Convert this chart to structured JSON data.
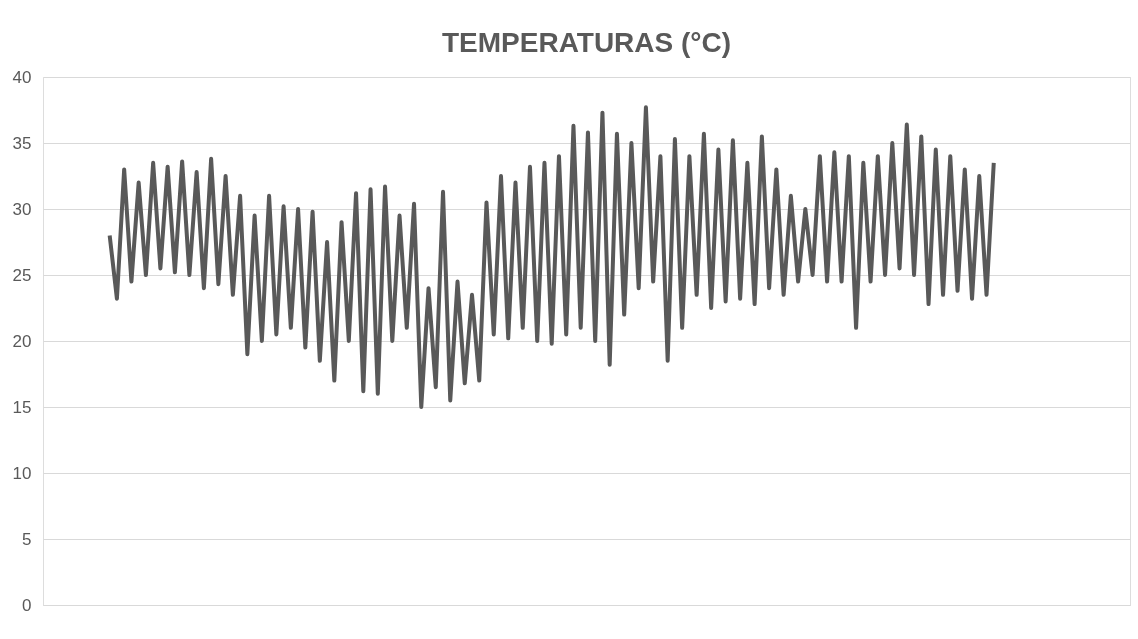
{
  "chart_data": {
    "type": "line",
    "title": "TEMPERATURAS (°C)",
    "categories": [
      null,
      null,
      null,
      null,
      null,
      null,
      null,
      null,
      null,
      null,
      null,
      null,
      null,
      null,
      null,
      null,
      null,
      null,
      null,
      null,
      null,
      null,
      null,
      null,
      null,
      null,
      null,
      null,
      null,
      null,
      null,
      null,
      null,
      null,
      null,
      null,
      null,
      null,
      null,
      null,
      null,
      null,
      null,
      null,
      null,
      null,
      null,
      null,
      null,
      null,
      null,
      null,
      null,
      null,
      null,
      null,
      null,
      null,
      null,
      null,
      null,
      null,
      null,
      null,
      null,
      null,
      null,
      null,
      null,
      null,
      null,
      null,
      null,
      null,
      null,
      null,
      null,
      null,
      null,
      null,
      null,
      null,
      null,
      null,
      null,
      null,
      null,
      null,
      null,
      null,
      null,
      null,
      null,
      null,
      null,
      null,
      null,
      null,
      null,
      null,
      null,
      null,
      null,
      null,
      null,
      null,
      null,
      null,
      null,
      null,
      null,
      null,
      null,
      null,
      null,
      null,
      null,
      null,
      null,
      null,
      null,
      null,
      null
    ],
    "series": [
      {
        "color": "#595959",
        "values": [
          28,
          23.2,
          33,
          24.5,
          32,
          25,
          33.5,
          25.5,
          33.2,
          25.2,
          33.6,
          25,
          32.8,
          24,
          33.8,
          24.3,
          32.5,
          23.5,
          31,
          19,
          29.5,
          20,
          31,
          20.5,
          30.2,
          21,
          30,
          19.5,
          29.8,
          18.5,
          27.5,
          17,
          29,
          20,
          31.2,
          16.2,
          31.5,
          16,
          31.7,
          20,
          29.5,
          21,
          30.4,
          15,
          24,
          16.5,
          31.3,
          15.5,
          24.5,
          16.8,
          23.5,
          17,
          30.5,
          20.5,
          32.5,
          20.2,
          32,
          21,
          33.2,
          20,
          33.5,
          19.8,
          34,
          20.5,
          36.3,
          21,
          35.8,
          20,
          37.3,
          18.2,
          35.7,
          22,
          35,
          24,
          37.7,
          24.5,
          34,
          18.5,
          35.3,
          21,
          34,
          23.5,
          35.7,
          22.5,
          34.5,
          23,
          35.2,
          23.2,
          33.5,
          22.8,
          35.5,
          24,
          33,
          23.5,
          31,
          24.5,
          30,
          25,
          34,
          24.5,
          34.3,
          24.5,
          34,
          21,
          33.5,
          24.5,
          34,
          25,
          35,
          25.5,
          36.4,
          25,
          35.5,
          22.8,
          34.5,
          23.5,
          34,
          23.8,
          33,
          23.2,
          32.5,
          23.5,
          33.5
        ]
      }
    ],
    "ylim": [
      0,
      40
    ],
    "yticks": [
      0,
      5,
      10,
      15,
      20,
      25,
      30,
      35,
      40
    ],
    "grid": true,
    "tick_labels": "y"
  }
}
